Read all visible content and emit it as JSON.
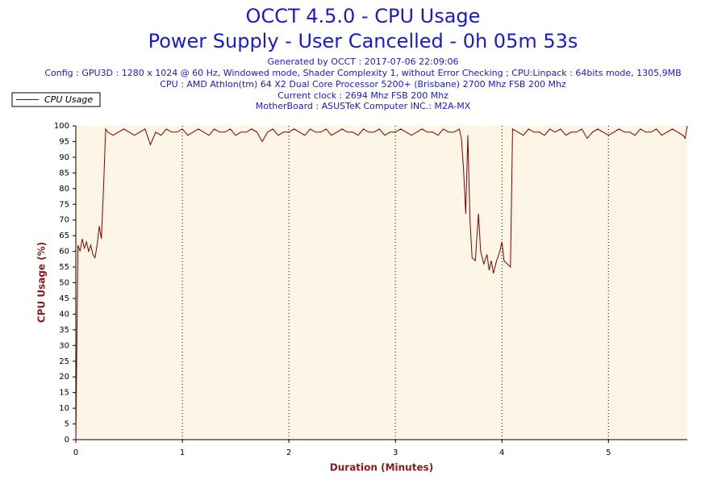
{
  "chart_data": {
    "type": "line",
    "title": "OCCT 4.5.0 - CPU Usage",
    "subtitle": "Power Supply - User Cancelled - 0h 05m 53s",
    "info": [
      "Generated by OCCT : 2017-07-06 22:09:06",
      "Config : GPU3D : 1280 x 1024 @ 60 Hz, Windowed mode, Shader Complexity 1, without Error Checking ; CPU:Linpack : 64bits mode, 1305,9MB",
      "CPU : AMD Athlon(tm) 64 X2 Dual Core Processor 5200+ (Brisbane) 2700 Mhz FSB 200 Mhz",
      "Current clock : 2694 Mhz FSB 200 Mhz",
      "MotherBoard : ASUSTeK Computer INC.: M2A-MX"
    ],
    "x_label": "Duration (Minutes)",
    "y_label": "CPU Usage (%)",
    "x": [
      0,
      0.02,
      0.04,
      0.06,
      0.08,
      0.1,
      0.12,
      0.14,
      0.16,
      0.18,
      0.2,
      0.22,
      0.24,
      0.26,
      0.28,
      0.3,
      0.35,
      0.4,
      0.45,
      0.5,
      0.55,
      0.6,
      0.65,
      0.7,
      0.75,
      0.8,
      0.85,
      0.9,
      0.95,
      1,
      1.05,
      1.1,
      1.15,
      1.2,
      1.25,
      1.3,
      1.35,
      1.4,
      1.45,
      1.5,
      1.55,
      1.6,
      1.65,
      1.7,
      1.75,
      1.8,
      1.85,
      1.9,
      1.95,
      2,
      2.05,
      2.1,
      2.15,
      2.2,
      2.25,
      2.3,
      2.35,
      2.4,
      2.45,
      2.5,
      2.55,
      2.6,
      2.65,
      2.7,
      2.75,
      2.8,
      2.85,
      2.9,
      2.95,
      3,
      3.05,
      3.1,
      3.15,
      3.2,
      3.25,
      3.3,
      3.35,
      3.4,
      3.45,
      3.5,
      3.55,
      3.6,
      3.62,
      3.64,
      3.66,
      3.68,
      3.7,
      3.72,
      3.75,
      3.78,
      3.8,
      3.83,
      3.86,
      3.88,
      3.9,
      3.92,
      3.95,
      3.98,
      4,
      4.02,
      4.05,
      4.08,
      4.1,
      4.15,
      4.2,
      4.25,
      4.3,
      4.35,
      4.4,
      4.45,
      4.5,
      4.55,
      4.6,
      4.65,
      4.7,
      4.75,
      4.8,
      4.85,
      4.9,
      4.95,
      5,
      5.05,
      5.1,
      5.15,
      5.2,
      5.25,
      5.3,
      5.35,
      5.4,
      5.45,
      5.5,
      5.55,
      5.6,
      5.65,
      5.7,
      5.72,
      5.74
    ],
    "series": [
      {
        "name": "CPU Usage",
        "color": "#800000",
        "values": [
          0,
          62,
          60,
          64,
          61,
          63,
          60,
          62,
          59,
          58,
          62,
          68,
          64,
          80,
          99,
          98,
          97,
          98,
          99,
          98,
          97,
          98,
          99,
          94,
          98,
          97,
          99,
          98,
          98,
          99,
          97,
          98,
          99,
          98,
          97,
          99,
          98,
          98,
          99,
          97,
          98,
          98,
          99,
          98,
          95,
          98,
          99,
          97,
          98,
          98,
          99,
          98,
          97,
          99,
          98,
          98,
          99,
          97,
          98,
          99,
          98,
          98,
          97,
          99,
          98,
          98,
          99,
          97,
          98,
          98,
          99,
          98,
          97,
          98,
          99,
          98,
          98,
          97,
          99,
          98,
          98,
          99,
          96,
          86,
          72,
          97,
          70,
          58,
          57,
          72,
          60,
          56,
          59,
          54,
          57,
          53,
          57,
          60,
          63,
          57,
          56,
          55,
          99,
          98,
          97,
          99,
          98,
          98,
          97,
          99,
          98,
          99,
          97,
          98,
          98,
          99,
          96,
          98,
          99,
          98,
          97,
          98,
          99,
          98,
          98,
          97,
          99,
          98,
          98,
          99,
          97,
          98,
          99,
          98,
          97,
          96,
          100
        ]
      }
    ],
    "xlim": [
      0,
      5.74
    ],
    "ylim": [
      0,
      100
    ],
    "xticks": [
      0,
      1,
      2,
      3,
      4,
      5
    ],
    "yticks": [
      0,
      5,
      10,
      15,
      20,
      25,
      30,
      35,
      40,
      45,
      50,
      55,
      60,
      65,
      70,
      75,
      80,
      85,
      90,
      95,
      100
    ],
    "grid": true
  }
}
